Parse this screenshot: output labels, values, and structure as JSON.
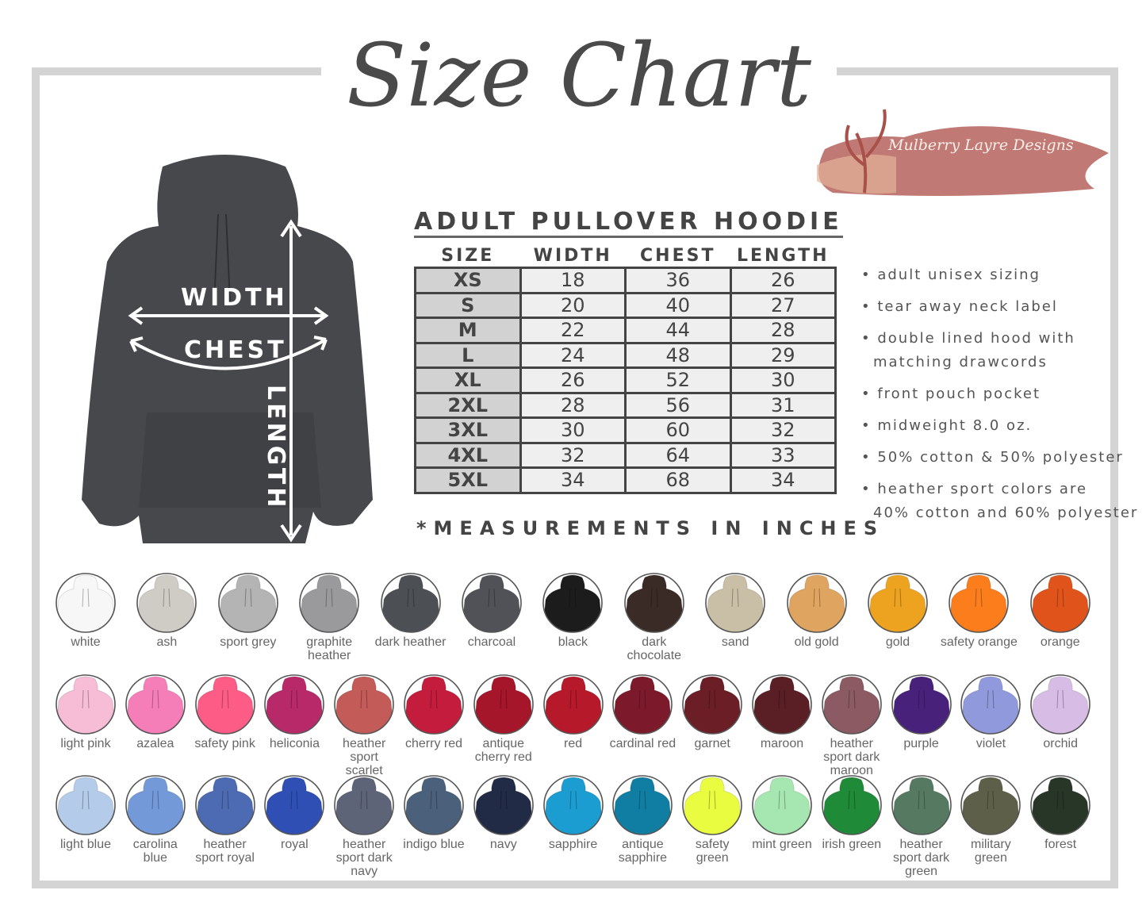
{
  "title": "Size Chart",
  "logo": {
    "text": "Mulberry Layre Designs",
    "color": "#b5625c"
  },
  "diagram": {
    "width_label": "WIDTH",
    "chest_label": "CHEST",
    "length_label": "LENGTH",
    "hoodie_color": "#46484c"
  },
  "table": {
    "title": "ADULT PULLOVER HOODIE",
    "headers": [
      "SIZE",
      "WIDTH",
      "CHEST",
      "LENGTH"
    ],
    "rows": [
      [
        "XS",
        "18",
        "36",
        "26"
      ],
      [
        "S",
        "20",
        "40",
        "27"
      ],
      [
        "M",
        "22",
        "44",
        "28"
      ],
      [
        "L",
        "24",
        "48",
        "29"
      ],
      [
        "XL",
        "26",
        "52",
        "30"
      ],
      [
        "2XL",
        "28",
        "56",
        "31"
      ],
      [
        "3XL",
        "30",
        "60",
        "32"
      ],
      [
        "4XL",
        "32",
        "64",
        "33"
      ],
      [
        "5XL",
        "34",
        "68",
        "34"
      ]
    ],
    "footnote": "*MEASUREMENTS IN INCHES"
  },
  "features": [
    "• adult unisex sizing",
    "• tear away neck label",
    "• double lined hood with",
    "matching drawcords",
    "• front pouch pocket",
    "• midweight 8.0 oz.",
    "• 50% cotton & 50% polyester",
    "• heather sport colors are",
    "40% cotton and 60% polyester"
  ],
  "colors": [
    [
      {
        "name": "white",
        "hex": "#f7f7f7"
      },
      {
        "name": "ash",
        "hex": "#cfccc6"
      },
      {
        "name": "sport grey",
        "hex": "#b4b4b4"
      },
      {
        "name": "graphite heather",
        "hex": "#9a9a9c"
      },
      {
        "name": "dark heather",
        "hex": "#4c4f53"
      },
      {
        "name": "charcoal",
        "hex": "#505257"
      },
      {
        "name": "black",
        "hex": "#1c1c1c"
      },
      {
        "name": "dark chocolate",
        "hex": "#3a2b26"
      },
      {
        "name": "sand",
        "hex": "#c9bea6"
      },
      {
        "name": "old gold",
        "hex": "#dfa45f"
      },
      {
        "name": "gold",
        "hex": "#eda320"
      },
      {
        "name": "safety orange",
        "hex": "#fb7d1c"
      },
      {
        "name": "orange",
        "hex": "#e0541c"
      }
    ],
    [
      {
        "name": "light pink",
        "hex": "#f7bcd6"
      },
      {
        "name": "azalea",
        "hex": "#f57eb8"
      },
      {
        "name": "safety pink",
        "hex": "#fc5c85"
      },
      {
        "name": "heliconia",
        "hex": "#b8296a"
      },
      {
        "name": "heather sport scarlet",
        "hex": "#c35b58"
      },
      {
        "name": "cherry red",
        "hex": "#c41c3d"
      },
      {
        "name": "antique cherry red",
        "hex": "#a5162a"
      },
      {
        "name": "red",
        "hex": "#b6192a"
      },
      {
        "name": "cardinal red",
        "hex": "#7c1a2c"
      },
      {
        "name": "garnet",
        "hex": "#6b1e25"
      },
      {
        "name": "maroon",
        "hex": "#5a1e25"
      },
      {
        "name": "heather sport dark maroon",
        "hex": "#8b5a62"
      },
      {
        "name": "purple",
        "hex": "#48227a"
      },
      {
        "name": "violet",
        "hex": "#8f99dc"
      },
      {
        "name": "orchid",
        "hex": "#d7bde6"
      }
    ],
    [
      {
        "name": "light blue",
        "hex": "#b4cbe9"
      },
      {
        "name": "carolina blue",
        "hex": "#7399d8"
      },
      {
        "name": "heather sport royal",
        "hex": "#4d6bb2"
      },
      {
        "name": "royal",
        "hex": "#2f4fb4"
      },
      {
        "name": "heather sport dark navy",
        "hex": "#5e6478"
      },
      {
        "name": "indigo blue",
        "hex": "#4b607a"
      },
      {
        "name": "navy",
        "hex": "#222b45"
      },
      {
        "name": "sapphire",
        "hex": "#1c9dd2"
      },
      {
        "name": "antique sapphire",
        "hex": "#0f7ea2"
      },
      {
        "name": "safety green",
        "hex": "#e9fc3f"
      },
      {
        "name": "mint green",
        "hex": "#a6e6b0"
      },
      {
        "name": "irish green",
        "hex": "#1f8a37"
      },
      {
        "name": "heather sport dark green",
        "hex": "#567a61"
      },
      {
        "name": "military green",
        "hex": "#5e5f48"
      },
      {
        "name": "forest",
        "hex": "#283628"
      }
    ]
  ]
}
